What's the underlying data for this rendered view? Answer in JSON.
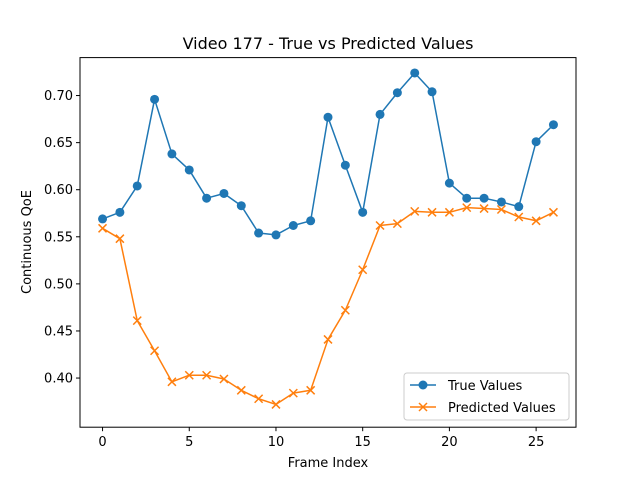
{
  "chart_data": {
    "type": "line",
    "title": "Video 177 - True vs Predicted Values",
    "xlabel": "Frame Index",
    "ylabel": "Continuous QoE",
    "xlim": [
      -1.3,
      27.3
    ],
    "ylim": [
      0.3478,
      0.7403
    ],
    "xticks": [
      0,
      5,
      10,
      15,
      20,
      25
    ],
    "yticks": [
      0.4,
      0.45,
      0.5,
      0.55,
      0.6,
      0.65,
      0.7
    ],
    "ytick_labels": [
      "0.40",
      "0.45",
      "0.50",
      "0.55",
      "0.60",
      "0.65",
      "0.70"
    ],
    "grid": false,
    "legend_position": "lower-right",
    "x": [
      0,
      1,
      2,
      3,
      4,
      5,
      6,
      7,
      8,
      9,
      10,
      11,
      12,
      13,
      14,
      15,
      16,
      17,
      18,
      19,
      20,
      21,
      22,
      23,
      24,
      25,
      26
    ],
    "series": [
      {
        "name": "True Values",
        "color": "#1f77b4",
        "marker": "circle",
        "values": [
          0.569,
          0.576,
          0.604,
          0.696,
          0.638,
          0.621,
          0.591,
          0.596,
          0.583,
          0.554,
          0.552,
          0.562,
          0.567,
          0.677,
          0.626,
          0.576,
          0.68,
          0.703,
          0.724,
          0.704,
          0.607,
          0.591,
          0.591,
          0.587,
          0.582,
          0.651,
          0.669
        ]
      },
      {
        "name": "Predicted Values",
        "color": "#ff7f0e",
        "marker": "x",
        "values": [
          0.559,
          0.548,
          0.461,
          0.429,
          0.396,
          0.403,
          0.403,
          0.399,
          0.387,
          0.378,
          0.372,
          0.384,
          0.387,
          0.441,
          0.472,
          0.515,
          0.562,
          0.564,
          0.577,
          0.576,
          0.576,
          0.581,
          0.58,
          0.579,
          0.571,
          0.567,
          0.576
        ]
      }
    ]
  }
}
